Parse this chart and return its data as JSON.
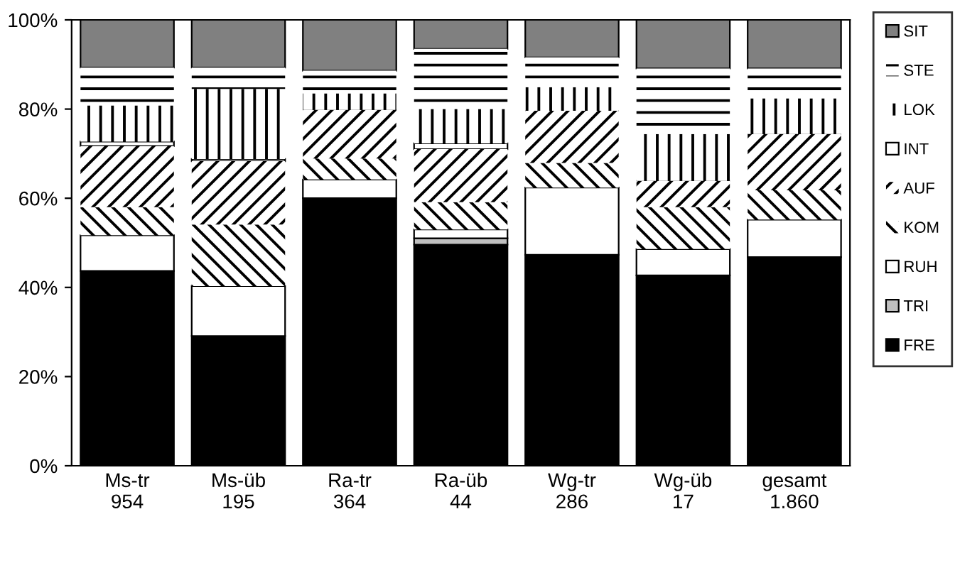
{
  "chart_data": {
    "type": "bar",
    "stacked": true,
    "categories": [
      "Ms-tr\n954",
      "Ms-üb\n195",
      "Ra-tr\n364",
      "Ra-üb\n44",
      "Wg-tr\n286",
      "Wg-üb\n17",
      "gesamt\n1.860"
    ],
    "series": [
      {
        "name": "FRE",
        "color": "#000000",
        "values": [
          43.7,
          29.1,
          60.0,
          49.6,
          47.3,
          42.7,
          46.8
        ]
      },
      {
        "name": "TRI",
        "color": "#c0c0c0",
        "values": [
          0,
          0,
          0,
          1.4,
          0,
          0,
          0
        ]
      },
      {
        "name": "RUH",
        "color": "#ffffff",
        "values": [
          8.0,
          11.2,
          4.2,
          2.0,
          15.1,
          5.9,
          8.4
        ]
      },
      {
        "name": "KOM",
        "color": "#ffffff",
        "values": [
          6.3,
          13.8,
          4.7,
          6.1,
          5.5,
          9.4,
          6.6
        ]
      },
      {
        "name": "AUF",
        "color": "#ffffff",
        "values": [
          13.7,
          14.2,
          10.9,
          11.9,
          11.7,
          5.9,
          12.6
        ]
      },
      {
        "name": "INT",
        "color": "#ffffff",
        "values": [
          1.0,
          0.5,
          0,
          1.3,
          0,
          0,
          0
        ]
      },
      {
        "name": "LOK",
        "color": "#ffffff",
        "values": [
          8.1,
          15.7,
          3.7,
          7.7,
          5.3,
          10.5,
          8.0
        ]
      },
      {
        "name": "STE",
        "color": "#ffffff",
        "values": [
          8.5,
          4.8,
          5.1,
          13.5,
          6.7,
          14.7,
          6.7
        ]
      },
      {
        "name": "SIT",
        "color": "#808080",
        "values": [
          10.7,
          10.7,
          11.4,
          6.5,
          8.4,
          10.9,
          10.9
        ]
      }
    ],
    "ylim": [
      0,
      100
    ],
    "yticks": [
      {
        "value": 0,
        "label": "0%"
      },
      {
        "value": 20,
        "label": "20%"
      },
      {
        "value": 40,
        "label": "40%"
      },
      {
        "value": 60,
        "label": "60%"
      },
      {
        "value": 80,
        "label": "80%"
      },
      {
        "value": 100,
        "label": "100%"
      }
    ],
    "grid": false,
    "legend": "right"
  }
}
